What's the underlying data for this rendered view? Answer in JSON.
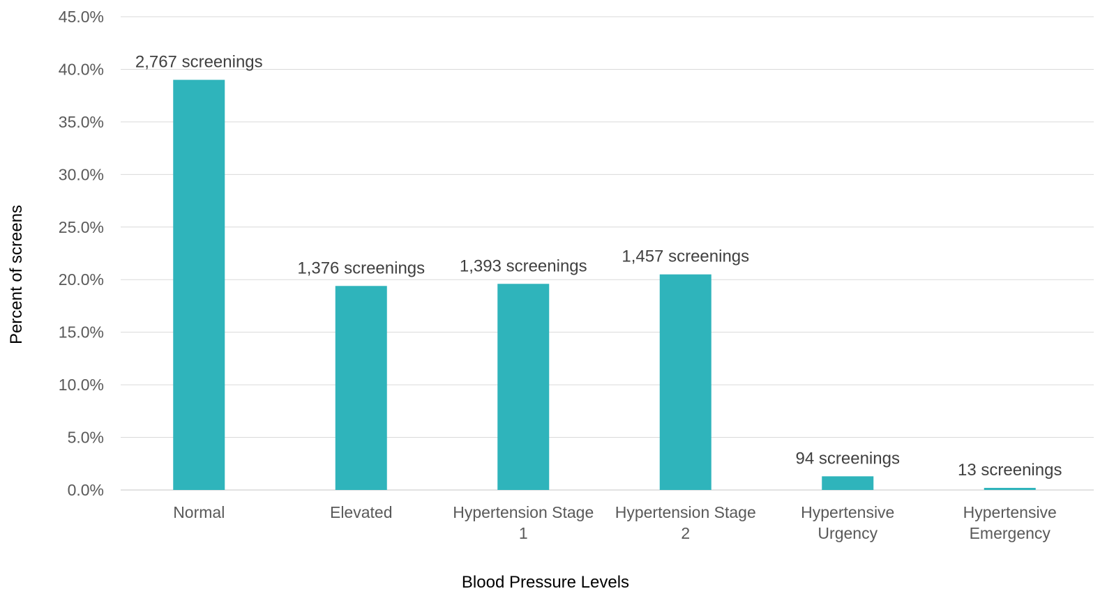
{
  "chart_data": {
    "type": "bar",
    "title": "",
    "xlabel": "Blood Pressure Levels",
    "ylabel": "Percent of screens",
    "ylim": [
      0,
      45
    ],
    "ytick_step": 5,
    "ytick_format": "percent_1dp",
    "grid": true,
    "legend": "none",
    "bar_color": "#2fb4bb",
    "categories": [
      [
        "Normal"
      ],
      [
        "Elevated"
      ],
      [
        "Hypertension Stage",
        "1"
      ],
      [
        "Hypertension Stage",
        "2"
      ],
      [
        "Hypertensive",
        "Urgency"
      ],
      [
        "Hypertensive",
        "Emergency"
      ]
    ],
    "values": [
      39.0,
      19.4,
      19.6,
      20.5,
      1.3,
      0.2
    ],
    "data_labels": [
      "2,767 screenings",
      "1,376 screenings",
      "1,393 screenings",
      "1,457 screenings",
      "94 screenings",
      "13 screenings"
    ]
  }
}
